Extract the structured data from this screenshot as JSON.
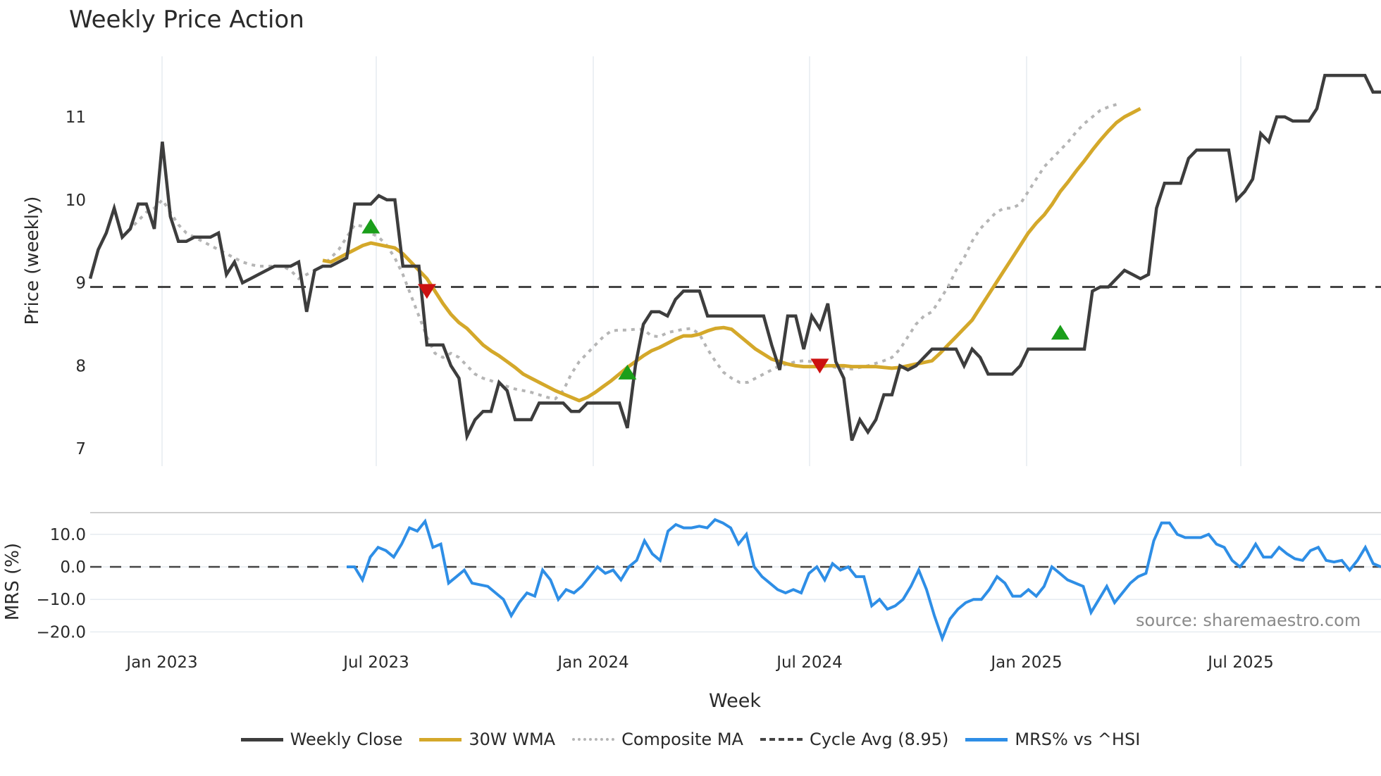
{
  "title": "Weekly Price Action",
  "source_note": "source: sharemaestro.com",
  "colors": {
    "weekly_close": "#3d3d3d",
    "wma30": "#d4a82a",
    "composite_ma": "#b5b5b5",
    "cycle_avg": "#444444",
    "mrs": "#2e8ee6",
    "buy_signal": "#1a9e1a",
    "sell_signal": "#cc1111",
    "grid": "#e6ebf0"
  },
  "legend": [
    {
      "key": "weekly_close",
      "label": "Weekly Close",
      "style": "solid"
    },
    {
      "key": "wma30",
      "label": "30W WMA",
      "style": "solid"
    },
    {
      "key": "composite_ma",
      "label": "Composite MA",
      "style": "dotted"
    },
    {
      "key": "cycle_avg",
      "label": "Cycle Avg (8.95)",
      "style": "dashed"
    },
    {
      "key": "mrs",
      "label": "MRS% vs ^HSI",
      "style": "solid"
    }
  ],
  "chart_data": [
    {
      "type": "line",
      "title": "Weekly Price Action",
      "xlabel": "",
      "ylabel": "Price (weekly)",
      "ylim": [
        6.85,
        11.7
      ],
      "yticks": [
        7,
        8,
        9,
        10,
        11
      ],
      "xticks": [
        "Jan 2023",
        "Jul 2023",
        "Jan 2024",
        "Jul 2024",
        "Jan 2025",
        "Jul 2025"
      ],
      "x_start": "Nov 2022",
      "x_end": "Oct 2025",
      "grid": true,
      "reference_line": {
        "name": "Cycle Avg (8.95)",
        "value": 8.95
      },
      "series": [
        {
          "name": "Weekly Close",
          "values": [
            9.05,
            9.4,
            9.6,
            9.9,
            9.55,
            9.65,
            9.95,
            9.95,
            9.65,
            10.7,
            9.8,
            9.5,
            9.5,
            9.55,
            9.55,
            9.55,
            9.6,
            9.1,
            9.25,
            9.0,
            9.05,
            9.1,
            9.15,
            9.2,
            9.2,
            9.2,
            9.25,
            8.65,
            9.15,
            9.2,
            9.2,
            9.25,
            9.3,
            9.95,
            9.95,
            9.95,
            10.05,
            10.0,
            10.0,
            9.2,
            9.2,
            9.2,
            8.25,
            8.25,
            8.25,
            8.0,
            7.85,
            7.15,
            7.35,
            7.45,
            7.45,
            7.8,
            7.7,
            7.35,
            7.35,
            7.35,
            7.55,
            7.55,
            7.55,
            7.55,
            7.45,
            7.45,
            7.55,
            7.55,
            7.55,
            7.55,
            7.55,
            7.25,
            8.0,
            8.5,
            8.65,
            8.65,
            8.6,
            8.8,
            8.9,
            8.9,
            8.9,
            8.6,
            8.6,
            8.6,
            8.6,
            8.6,
            8.6,
            8.6,
            8.6,
            8.25,
            7.95,
            8.6,
            8.6,
            8.2,
            8.6,
            8.45,
            8.75,
            8.05,
            7.85,
            7.1,
            7.35,
            7.2,
            7.35,
            7.65,
            7.65,
            8.0,
            7.95,
            8.0,
            8.1,
            8.2,
            8.2,
            8.2,
            8.2,
            8.0,
            8.2,
            8.1,
            7.9,
            7.9,
            7.9,
            7.9,
            8.0,
            8.2,
            8.2,
            8.2,
            8.2,
            8.2,
            8.2,
            8.2,
            8.2,
            8.9,
            8.95,
            8.95,
            9.05,
            9.15,
            9.1,
            9.05,
            9.1,
            9.9,
            10.2,
            10.2,
            10.2,
            10.5,
            10.6,
            10.6,
            10.6,
            10.6,
            10.6,
            10.0,
            10.1,
            10.25,
            10.8,
            10.7,
            11.0,
            11.0,
            10.95,
            10.95,
            10.95,
            11.1,
            11.5,
            11.5,
            11.5,
            11.5,
            11.5,
            11.5,
            11.3,
            11.3
          ]
        },
        {
          "name": "30W WMA",
          "values": [
            null,
            null,
            null,
            null,
            null,
            null,
            null,
            null,
            null,
            null,
            null,
            null,
            null,
            null,
            null,
            null,
            null,
            null,
            null,
            null,
            null,
            null,
            null,
            null,
            null,
            null,
            null,
            null,
            null,
            9.27,
            9.25,
            9.3,
            9.35,
            9.4,
            9.45,
            9.48,
            9.46,
            9.44,
            9.42,
            9.35,
            9.25,
            9.15,
            9.05,
            8.9,
            8.75,
            8.62,
            8.52,
            8.45,
            8.35,
            8.25,
            8.18,
            8.12,
            8.05,
            7.98,
            7.9,
            7.85,
            7.8,
            7.75,
            7.7,
            7.66,
            7.62,
            7.58,
            7.62,
            7.68,
            7.75,
            7.82,
            7.9,
            7.98,
            8.05,
            8.12,
            8.18,
            8.22,
            8.27,
            8.32,
            8.36,
            8.36,
            8.38,
            8.42,
            8.45,
            8.46,
            8.44,
            8.36,
            8.28,
            8.2,
            8.14,
            8.08,
            8.05,
            8.02,
            8.0,
            7.99,
            7.99,
            7.99,
            8.0,
            8.0,
            8.0,
            7.99,
            7.99,
            7.99,
            7.99,
            7.98,
            7.97,
            7.98,
            8.0,
            8.02,
            8.04,
            8.06,
            8.15,
            8.25,
            8.35,
            8.45,
            8.55,
            8.7,
            8.85,
            9.0,
            9.15,
            9.3,
            9.45,
            9.6,
            9.72,
            9.82,
            9.95,
            10.1,
            10.22,
            10.35,
            10.47,
            10.6,
            10.72,
            10.83,
            10.93,
            11.0,
            11.05,
            11.1
          ]
        },
        {
          "name": "Composite MA",
          "values": [
            null,
            null,
            null,
            null,
            9.55,
            9.65,
            9.75,
            9.85,
            9.9,
            10.0,
            9.85,
            9.7,
            9.6,
            9.55,
            9.5,
            9.45,
            9.4,
            9.35,
            9.3,
            9.25,
            9.22,
            9.2,
            9.2,
            9.2,
            9.2,
            9.15,
            9.05,
            9.1,
            9.15,
            9.2,
            9.3,
            9.4,
            9.55,
            9.7,
            9.68,
            9.6,
            9.55,
            9.45,
            9.3,
            9.1,
            8.85,
            8.6,
            8.35,
            8.15,
            8.1,
            8.15,
            8.1,
            8.0,
            7.9,
            7.85,
            7.82,
            7.78,
            7.75,
            7.72,
            7.7,
            7.68,
            7.65,
            7.62,
            7.6,
            7.7,
            7.9,
            8.05,
            8.15,
            8.25,
            8.35,
            8.42,
            8.43,
            8.43,
            8.44,
            8.44,
            8.36,
            8.35,
            8.4,
            8.42,
            8.44,
            8.45,
            8.38,
            8.2,
            8.05,
            7.92,
            7.85,
            7.8,
            7.8,
            7.85,
            7.9,
            7.95,
            8.0,
            8.02,
            8.05,
            8.06,
            8.05,
            8.02,
            8.0,
            7.98,
            7.97,
            7.96,
            7.98,
            8.0,
            8.03,
            8.06,
            8.1,
            8.2,
            8.35,
            8.5,
            8.6,
            8.65,
            8.8,
            8.95,
            9.15,
            9.3,
            9.5,
            9.65,
            9.75,
            9.85,
            9.9,
            9.9,
            9.95,
            10.1,
            10.25,
            10.4,
            10.5,
            10.6,
            10.7,
            10.82,
            10.92,
            11.0,
            11.08,
            11.12,
            11.15
          ]
        },
        {
          "name": "MRS% vs ^HSI",
          "values": [
            0,
            0,
            -4,
            3,
            6,
            5,
            3,
            7,
            12,
            11,
            14,
            6,
            7,
            -5,
            -3,
            -1,
            -5,
            -5.5,
            -6,
            -8,
            -10,
            -15,
            -11,
            -8,
            -9,
            -1,
            -4,
            -10,
            -7,
            -8,
            -6,
            -3,
            0,
            -2,
            -1,
            -4,
            0,
            2,
            8,
            4,
            2,
            11,
            13,
            12,
            12,
            12.5,
            12,
            14.5,
            13.5,
            12,
            7,
            10,
            0,
            -3,
            -5,
            -7,
            -8,
            -7,
            -8,
            -2,
            0,
            -4,
            1,
            -1,
            0,
            -3,
            -3,
            -12,
            -10,
            -13,
            -12,
            -10,
            -6,
            -1,
            -7,
            -15,
            -22,
            -16,
            -13,
            -11,
            -10,
            -10,
            -7,
            -3,
            -5,
            -9,
            -9,
            -7,
            -9,
            -6,
            0,
            -2,
            -4,
            -5,
            -6,
            -14,
            -10,
            -6,
            -11,
            -8,
            -5,
            -3,
            -2,
            8,
            13.5,
            13.5,
            10,
            9,
            9,
            9,
            10,
            7,
            6,
            2,
            0,
            3,
            7,
            3,
            3,
            6,
            4,
            2.5,
            2,
            5,
            6,
            2,
            1.5,
            2,
            -1,
            2,
            6,
            1,
            0
          ]
        }
      ],
      "signals": [
        {
          "type": "buy",
          "week_index": 35,
          "value": 9.68
        },
        {
          "type": "sell",
          "week_index": 42,
          "value": 8.9
        },
        {
          "type": "buy",
          "week_index": 67,
          "value": 7.92
        },
        {
          "type": "sell",
          "week_index": 91,
          "value": 8.0
        },
        {
          "type": "buy",
          "week_index": 121,
          "value": 8.4
        }
      ]
    },
    {
      "type": "line",
      "xlabel": "Week",
      "ylabel": "MRS (%)",
      "ylim": [
        -25,
        17
      ],
      "yticks": [
        "10.0",
        "0.0",
        "−10.0",
        "−20.0"
      ],
      "reference_line": {
        "value": 0
      },
      "series_ref": "MRS% vs ^HSI"
    }
  ],
  "axes": {
    "price_ylabel": "Price (weekly)",
    "price_yticks": [
      "11",
      "10",
      "9",
      "8",
      "7"
    ],
    "mrs_ylabel": "MRS (%)",
    "mrs_yticks": [
      "10.0",
      "0.0",
      "−10.0",
      "−20.0"
    ],
    "xticks": [
      "Jan 2023",
      "Jul 2023",
      "Jan 2024",
      "Jul 2024",
      "Jan 2025",
      "Jul 2025"
    ],
    "xlabel": "Week"
  }
}
